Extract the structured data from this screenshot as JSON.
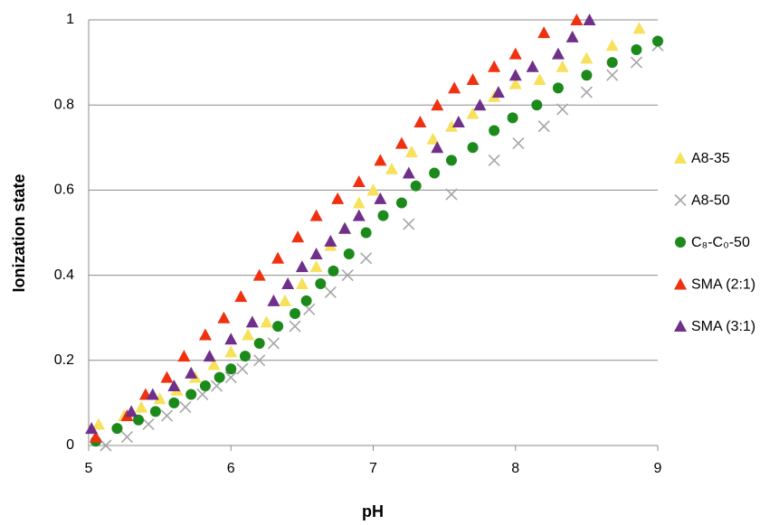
{
  "chart_data": {
    "type": "scatter",
    "xlabel": "pH",
    "ylabel": "Ionization state",
    "xlim": [
      5,
      9
    ],
    "xticks": [
      5,
      6,
      7,
      8,
      9
    ],
    "ylim": [
      0,
      1
    ],
    "yticks": [
      0,
      0.2,
      0.4,
      0.6,
      0.8,
      1
    ],
    "grid": true,
    "legend": "right",
    "series": [
      {
        "name": "A8-35",
        "color": "#f7e15a",
        "marker": "triangle",
        "x": [
          5.07,
          5.25,
          5.37,
          5.5,
          5.62,
          5.75,
          5.88,
          6.0,
          6.12,
          6.25,
          6.38,
          6.5,
          6.6,
          6.7,
          6.8,
          6.9,
          7.0,
          7.13,
          7.27,
          7.42,
          7.55,
          7.7,
          7.85,
          8.0,
          8.17,
          8.33,
          8.5,
          8.68,
          8.87
        ],
        "values": [
          0.05,
          0.07,
          0.09,
          0.11,
          0.13,
          0.16,
          0.19,
          0.22,
          0.26,
          0.29,
          0.34,
          0.38,
          0.42,
          0.47,
          0.51,
          0.57,
          0.6,
          0.65,
          0.69,
          0.72,
          0.75,
          0.78,
          0.82,
          0.85,
          0.86,
          0.89,
          0.91,
          0.94,
          0.98
        ]
      },
      {
        "name": "A8-50",
        "color": "#a6a6a6",
        "marker": "x",
        "x": [
          5.12,
          5.27,
          5.42,
          5.55,
          5.68,
          5.8,
          5.9,
          6.0,
          6.08,
          6.2,
          6.3,
          6.45,
          6.55,
          6.7,
          6.82,
          6.95,
          7.25,
          7.55,
          7.85,
          8.02,
          8.2,
          8.33,
          8.5,
          8.68,
          8.85,
          9.0
        ],
        "values": [
          0,
          0.02,
          0.05,
          0.07,
          0.09,
          0.12,
          0.14,
          0.16,
          0.18,
          0.2,
          0.24,
          0.28,
          0.32,
          0.36,
          0.4,
          0.44,
          0.52,
          0.59,
          0.67,
          0.71,
          0.75,
          0.79,
          0.83,
          0.87,
          0.9,
          0.94
        ]
      },
      {
        "name": "C₈-C₀-50",
        "color": "#1b8a1b",
        "marker": "circle",
        "x": [
          5.05,
          5.2,
          5.35,
          5.47,
          5.6,
          5.72,
          5.82,
          5.92,
          6.0,
          6.1,
          6.2,
          6.33,
          6.45,
          6.53,
          6.63,
          6.72,
          6.83,
          6.95,
          7.07,
          7.2,
          7.3,
          7.43,
          7.55,
          7.7,
          7.85,
          7.98,
          8.15,
          8.3,
          8.5,
          8.68,
          8.85,
          9.0
        ],
        "values": [
          0.01,
          0.04,
          0.06,
          0.08,
          0.1,
          0.12,
          0.14,
          0.16,
          0.18,
          0.21,
          0.24,
          0.28,
          0.31,
          0.34,
          0.38,
          0.41,
          0.45,
          0.5,
          0.54,
          0.57,
          0.61,
          0.64,
          0.67,
          0.7,
          0.74,
          0.77,
          0.8,
          0.84,
          0.87,
          0.9,
          0.93,
          0.95
        ]
      },
      {
        "name": "SMA (2:1)",
        "color": "#f0300f",
        "marker": "triangle",
        "x": [
          5.05,
          5.27,
          5.4,
          5.55,
          5.67,
          5.82,
          5.95,
          6.07,
          6.2,
          6.33,
          6.47,
          6.6,
          6.75,
          6.9,
          7.05,
          7.2,
          7.33,
          7.45,
          7.57,
          7.7,
          7.85,
          8.0,
          8.2,
          8.43
        ],
        "values": [
          0.02,
          0.07,
          0.12,
          0.16,
          0.21,
          0.26,
          0.3,
          0.35,
          0.4,
          0.44,
          0.49,
          0.54,
          0.58,
          0.62,
          0.67,
          0.71,
          0.76,
          0.8,
          0.84,
          0.86,
          0.89,
          0.92,
          0.97,
          1
        ]
      },
      {
        "name": "SMA (3:1)",
        "color": "#70308a",
        "marker": "triangle",
        "x": [
          5.02,
          5.3,
          5.45,
          5.6,
          5.72,
          5.85,
          6.0,
          6.15,
          6.3,
          6.4,
          6.5,
          6.6,
          6.7,
          6.8,
          6.9,
          7.05,
          7.25,
          7.45,
          7.6,
          7.75,
          7.88,
          8.0,
          8.12,
          8.3,
          8.4,
          8.52
        ],
        "values": [
          0.04,
          0.08,
          0.12,
          0.14,
          0.17,
          0.21,
          0.25,
          0.29,
          0.34,
          0.38,
          0.42,
          0.45,
          0.48,
          0.51,
          0.54,
          0.58,
          0.64,
          0.7,
          0.76,
          0.8,
          0.83,
          0.87,
          0.89,
          0.92,
          0.96,
          1
        ]
      }
    ]
  }
}
